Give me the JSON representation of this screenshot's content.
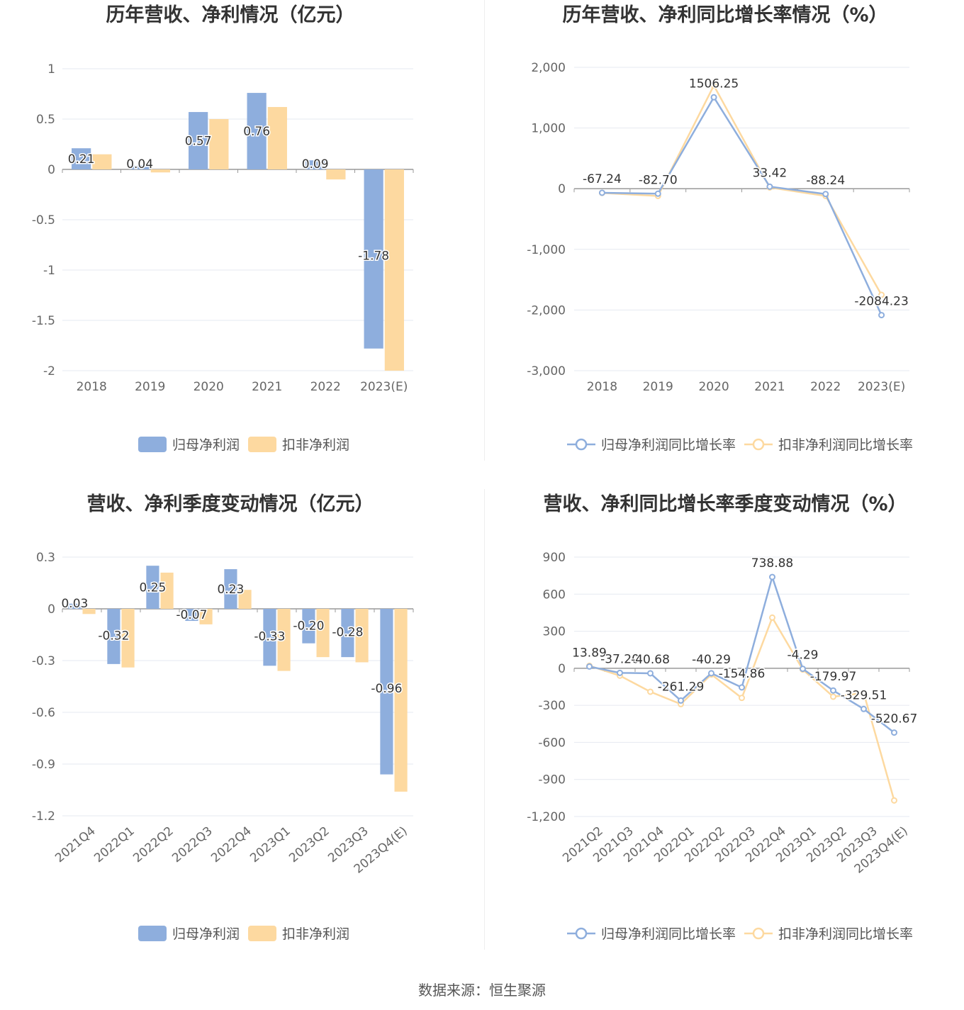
{
  "colors": {
    "primary": "#8eaedd",
    "secondary": "#fdd9a0",
    "grid": "#e6e9f0",
    "axis": "#999999"
  },
  "footer": {
    "source": "数据来源：恒生聚源"
  },
  "charts": [
    {
      "id": "chart1",
      "type": "bar",
      "title": "历年营收、净利情况（亿元）",
      "categories": [
        "2018",
        "2019",
        "2020",
        "2021",
        "2022",
        "2023(E)"
      ],
      "yticks": [
        "1",
        "0.5",
        "0",
        "-0.5",
        "-1",
        "-1.5",
        "-2"
      ],
      "ylim": [
        -2,
        1
      ],
      "series": [
        {
          "name": "归母净利润",
          "values": [
            0.21,
            0.04,
            0.57,
            0.76,
            0.09,
            -1.78
          ],
          "labels": [
            "0.21",
            "0.04",
            "0.57",
            "0.76",
            "0.09",
            "-1.78"
          ]
        },
        {
          "name": "扣非净利润",
          "values": [
            0.15,
            -0.03,
            0.5,
            0.62,
            -0.1,
            -2.0
          ]
        }
      ]
    },
    {
      "id": "chart2",
      "type": "line",
      "title": "历年营收、净利同比增长率情况（%）",
      "categories": [
        "2018",
        "2019",
        "2020",
        "2021",
        "2022",
        "2023(E)"
      ],
      "yticks": [
        "2,000",
        "1,000",
        "0",
        "-1,000",
        "-2,000",
        "-3,000"
      ],
      "ylim": [
        -3000,
        2000
      ],
      "series": [
        {
          "name": "归母净利润同比增长率",
          "values": [
            -67.24,
            -82.7,
            1506.25,
            33.42,
            -88.24,
            -2084.23
          ],
          "labels": [
            "-67.24",
            "-82.70",
            "1506.25",
            "33.42",
            "-88.24",
            "-2084.23"
          ]
        },
        {
          "name": "扣非净利润同比增长率",
          "values": [
            -70,
            -120,
            1700,
            20,
            -120,
            -1750
          ]
        }
      ]
    },
    {
      "id": "chart3",
      "type": "bar",
      "title": "营收、净利季度变动情况（亿元）",
      "categories": [
        "2021Q4",
        "2022Q1",
        "2022Q2",
        "2022Q3",
        "2022Q4",
        "2023Q1",
        "2023Q2",
        "2023Q3",
        "2023Q4(E)"
      ],
      "yticks": [
        "0.3",
        "0",
        "-0.3",
        "-0.6",
        "-0.9",
        "-1.2"
      ],
      "ylim": [
        -1.2,
        0.3
      ],
      "series": [
        {
          "name": "归母净利润",
          "values": [
            0.03,
            -0.32,
            0.25,
            -0.07,
            0.23,
            -0.33,
            -0.2,
            -0.28,
            -0.96
          ],
          "labels": [
            "0.03",
            "-0.32",
            "0.25",
            "-0.07",
            "0.23",
            "-0.33",
            "-0.20",
            "-0.28",
            "-0.96"
          ]
        },
        {
          "name": "扣非净利润",
          "values": [
            -0.03,
            -0.34,
            0.21,
            -0.09,
            0.11,
            -0.36,
            -0.28,
            -0.31,
            -1.06
          ]
        }
      ]
    },
    {
      "id": "chart4",
      "type": "line",
      "title": "营收、净利同比增长率季度变动情况（%）",
      "categories": [
        "2021Q2",
        "2021Q3",
        "2021Q4",
        "2022Q1",
        "2022Q2",
        "2022Q3",
        "2022Q4",
        "2023Q1",
        "2023Q2",
        "2023Q3",
        "2023Q4(E)"
      ],
      "yticks": [
        "900",
        "600",
        "300",
        "0",
        "-300",
        "-600",
        "-900",
        "-1,200"
      ],
      "ylim": [
        -1200,
        900
      ],
      "series": [
        {
          "name": "归母净利润同比增长率",
          "values": [
            13.89,
            -37.2,
            -40.68,
            -261.29,
            -40.29,
            -154.86,
            738.88,
            -4.29,
            -179.97,
            -329.51,
            -520.67
          ],
          "labels": [
            "13.89",
            "-37.20",
            "-40.68",
            "-261.29",
            "-40.29",
            "-154.86",
            "738.88",
            "-4.29",
            "-179.97",
            "-329.51",
            "-520.67"
          ]
        },
        {
          "name": "扣非净利润同比增长率",
          "values": [
            20,
            -60,
            -190,
            -290,
            -50,
            -240,
            410,
            -10,
            -230,
            -200,
            -1070
          ]
        }
      ]
    }
  ]
}
